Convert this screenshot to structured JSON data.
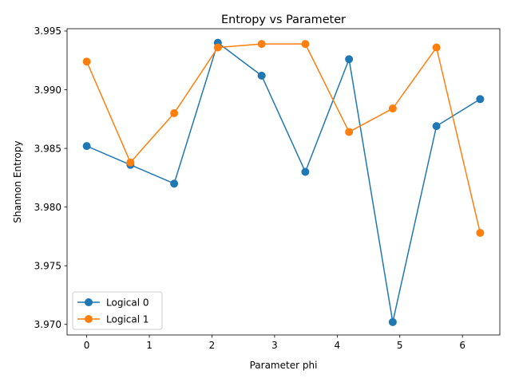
{
  "chart_data": {
    "type": "line",
    "title": "Entropy vs Parameter",
    "xlabel": "Parameter phi",
    "ylabel": "Shannon Entropy",
    "x": [
      0.0,
      0.698,
      1.396,
      2.094,
      2.793,
      3.491,
      4.189,
      4.887,
      5.585,
      6.283
    ],
    "xlim": [
      -0.314,
      6.597
    ],
    "ylim": [
      3.9691,
      3.9952
    ],
    "xticks": [
      0,
      1,
      2,
      3,
      4,
      5,
      6
    ],
    "xtick_labels": [
      "0",
      "1",
      "2",
      "3",
      "4",
      "5",
      "6"
    ],
    "yticks": [
      3.97,
      3.975,
      3.98,
      3.985,
      3.99,
      3.995
    ],
    "ytick_labels": [
      "3.970",
      "3.975",
      "3.980",
      "3.985",
      "3.990",
      "3.995"
    ],
    "grid": false,
    "legend_position": "lower-left",
    "series": [
      {
        "name": "Logical 0",
        "color": "#1f77b4",
        "marker": "circle",
        "values": [
          3.9852,
          3.9836,
          3.982,
          3.994,
          3.9912,
          3.983,
          3.9926,
          3.9702,
          3.9869,
          3.9892
        ]
      },
      {
        "name": "Logical 1",
        "color": "#ff7f0e",
        "marker": "circle",
        "values": [
          3.9924,
          3.9838,
          3.988,
          3.9936,
          3.9939,
          3.9939,
          3.9864,
          3.9884,
          3.9936,
          3.9778
        ]
      }
    ]
  }
}
